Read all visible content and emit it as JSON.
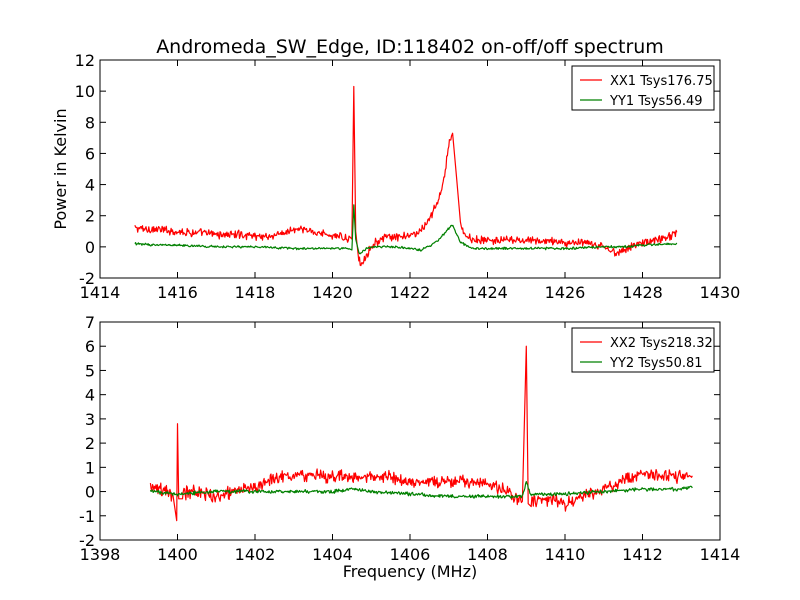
{
  "figure": {
    "title": "Andromeda_SW_Edge, ID:118402 on-off/off spectrum",
    "ylabel": "Power in Kelvin",
    "xlabel": "Frequency (MHz)"
  },
  "chart_data": [
    {
      "type": "line",
      "title": "Andromeda_SW_Edge, ID:118402 on-off/off spectrum",
      "ylabel": "Power in Kelvin",
      "xlabel": "",
      "xlim": [
        1414,
        1430
      ],
      "ylim": [
        -2,
        12
      ],
      "xticks": [
        1414,
        1416,
        1418,
        1420,
        1422,
        1424,
        1426,
        1428,
        1430
      ],
      "yticks": [
        -2,
        0,
        2,
        4,
        6,
        8,
        10,
        12
      ],
      "grid": false,
      "legend_position": "top-right",
      "series": [
        {
          "name": "XX1 Tsys176.75",
          "color": "#ff0000",
          "x": [
            1414.9,
            1415.5,
            1416.0,
            1416.5,
            1417.0,
            1417.5,
            1418.0,
            1418.5,
            1419.0,
            1419.5,
            1420.0,
            1420.3,
            1420.5,
            1420.55,
            1420.6,
            1420.65,
            1420.75,
            1420.9,
            1421.1,
            1421.4,
            1421.7,
            1422.0,
            1422.3,
            1422.5,
            1422.7,
            1422.85,
            1423.0,
            1423.1,
            1423.2,
            1423.3,
            1423.4,
            1423.6,
            1424.0,
            1424.5,
            1425.0,
            1425.5,
            1426.0,
            1426.5,
            1427.0,
            1427.3,
            1427.6,
            1428.0,
            1428.5,
            1428.9
          ],
          "y": [
            1.2,
            1.1,
            1.0,
            0.9,
            0.8,
            0.8,
            0.7,
            0.7,
            1.1,
            1.0,
            0.7,
            0.6,
            0.5,
            10.3,
            1.0,
            -0.8,
            -1.1,
            -0.4,
            0.3,
            0.6,
            0.6,
            0.7,
            1.1,
            1.8,
            2.8,
            4.0,
            6.5,
            7.3,
            4.5,
            1.6,
            0.8,
            0.5,
            0.4,
            0.4,
            0.4,
            0.4,
            0.3,
            0.2,
            0.0,
            -0.4,
            -0.1,
            0.3,
            0.5,
            0.9
          ]
        },
        {
          "name": "YY1 Tsys56.49",
          "color": "#008000",
          "x": [
            1414.9,
            1415.5,
            1416.0,
            1417.0,
            1418.0,
            1419.0,
            1420.0,
            1420.4,
            1420.5,
            1420.55,
            1420.6,
            1420.7,
            1420.8,
            1421.0,
            1421.5,
            1422.0,
            1422.3,
            1422.6,
            1422.8,
            1423.0,
            1423.1,
            1423.3,
            1423.6,
            1424.0,
            1425.0,
            1426.0,
            1427.0,
            1427.5,
            1428.0,
            1428.9
          ],
          "y": [
            0.2,
            0.1,
            0.1,
            0.0,
            0.0,
            -0.1,
            -0.1,
            -0.1,
            -0.2,
            2.7,
            0.5,
            -0.5,
            -0.2,
            0.0,
            0.0,
            -0.1,
            -0.2,
            0.2,
            0.6,
            1.2,
            1.4,
            0.3,
            -0.1,
            -0.1,
            -0.1,
            -0.1,
            0.0,
            0.0,
            0.1,
            0.2
          ]
        }
      ]
    },
    {
      "type": "line",
      "title": "",
      "ylabel": "",
      "xlabel": "Frequency (MHz)",
      "xlim": [
        1398,
        1414
      ],
      "ylim": [
        -2,
        7
      ],
      "xticks": [
        1398,
        1400,
        1402,
        1404,
        1406,
        1408,
        1410,
        1412,
        1414
      ],
      "yticks": [
        -2,
        -1,
        0,
        1,
        2,
        3,
        4,
        5,
        6,
        7
      ],
      "grid": false,
      "legend_position": "top-right",
      "series": [
        {
          "name": "XX2 Tsys218.32",
          "color": "#ff0000",
          "x": [
            1399.3,
            1399.6,
            1399.9,
            1399.98,
            1400.0,
            1400.03,
            1400.1,
            1400.5,
            1401.0,
            1401.5,
            1402.0,
            1402.5,
            1403.0,
            1403.5,
            1404.0,
            1404.5,
            1405.0,
            1405.5,
            1406.0,
            1406.5,
            1407.0,
            1407.5,
            1408.0,
            1408.5,
            1408.9,
            1409.0,
            1409.05,
            1409.2,
            1409.5,
            1410.0,
            1410.5,
            1411.0,
            1411.5,
            1412.0,
            1412.5,
            1413.0,
            1413.3
          ],
          "y": [
            0.3,
            0.1,
            -0.2,
            -1.2,
            2.8,
            -0.3,
            -0.1,
            0.0,
            -0.2,
            0.0,
            0.2,
            0.6,
            0.7,
            0.7,
            0.6,
            0.6,
            0.6,
            0.6,
            0.3,
            0.4,
            0.4,
            0.4,
            0.3,
            0.0,
            -0.4,
            6.0,
            -0.5,
            -0.4,
            -0.3,
            -0.5,
            -0.2,
            0.1,
            0.5,
            0.7,
            0.7,
            0.6,
            0.6
          ]
        },
        {
          "name": "YY2 Tsys50.81",
          "color": "#008000",
          "x": [
            1399.3,
            1400.0,
            1401.0,
            1402.0,
            1403.0,
            1404.0,
            1404.5,
            1405.0,
            1406.0,
            1407.0,
            1408.0,
            1408.9,
            1409.0,
            1409.1,
            1410.0,
            1411.0,
            1412.0,
            1413.0,
            1413.3
          ],
          "y": [
            0.0,
            -0.1,
            0.0,
            0.0,
            0.0,
            0.0,
            0.1,
            0.0,
            -0.1,
            -0.2,
            -0.2,
            -0.2,
            0.4,
            -0.1,
            -0.1,
            0.0,
            0.1,
            0.1,
            0.2
          ]
        }
      ]
    }
  ]
}
